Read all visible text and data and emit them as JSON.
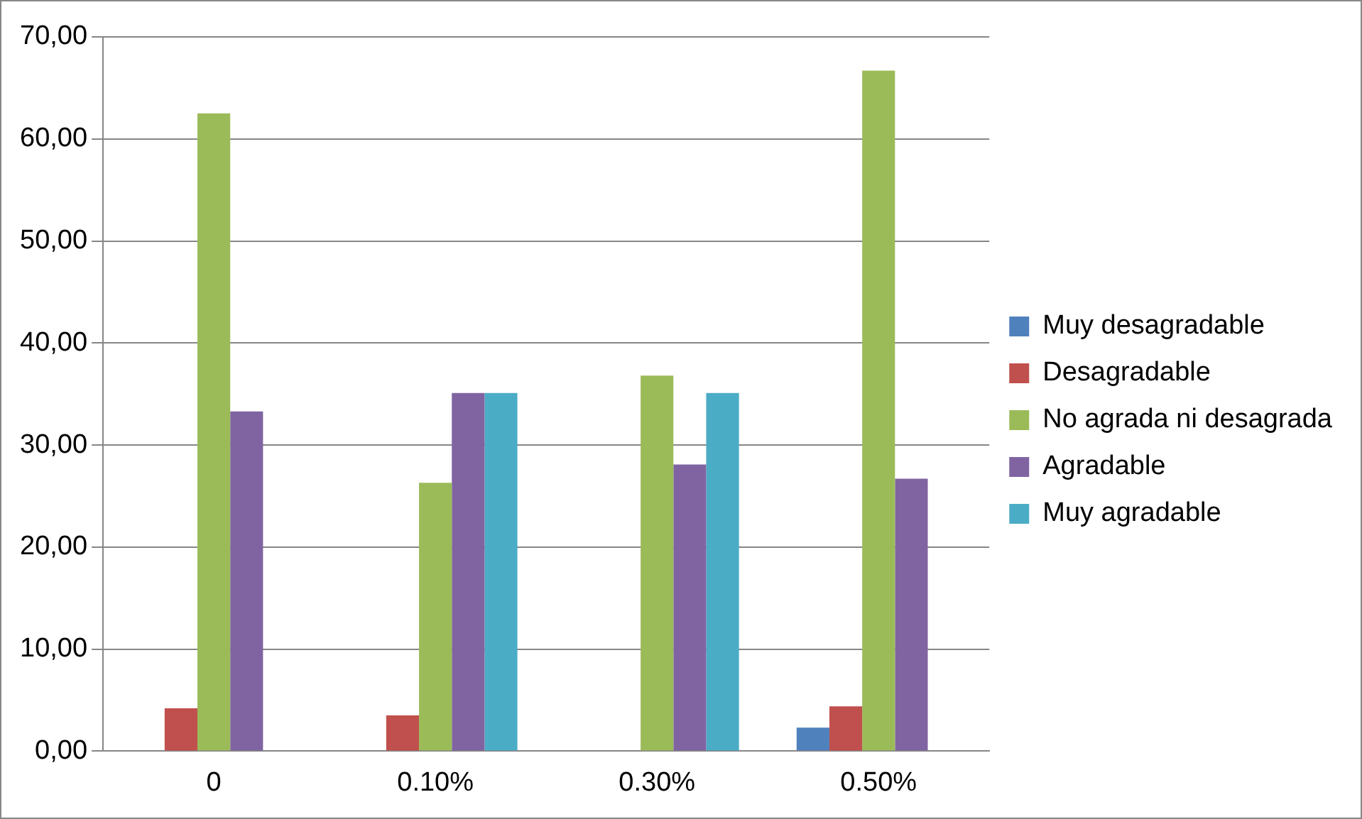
{
  "chart_data": {
    "type": "bar",
    "categories": [
      "0",
      "0.10%",
      "0.30%",
      "0.50%"
    ],
    "series": [
      {
        "name": "Muy desagradable",
        "color": "#4f81bd",
        "values": [
          0,
          0,
          0,
          2.3
        ]
      },
      {
        "name": "Desagradable",
        "color": "#c0504d",
        "values": [
          4.2,
          3.5,
          0,
          4.4
        ]
      },
      {
        "name": "No agrada ni desagrada",
        "color": "#9bbb59",
        "values": [
          62.5,
          26.3,
          36.8,
          66.7
        ]
      },
      {
        "name": "Agradable",
        "color": "#8064a2",
        "values": [
          33.3,
          35.1,
          28.1,
          26.7
        ]
      },
      {
        "name": "Muy agradable",
        "color": "#4bacc6",
        "values": [
          0,
          35.1,
          35.1,
          0
        ]
      }
    ],
    "ylim": [
      0,
      70
    ],
    "yticks": [
      {
        "value": 0,
        "label": "0,00"
      },
      {
        "value": 10,
        "label": "10,00"
      },
      {
        "value": 20,
        "label": "20,00"
      },
      {
        "value": 30,
        "label": "30,00"
      },
      {
        "value": 40,
        "label": "40,00"
      },
      {
        "value": 50,
        "label": "50,00"
      },
      {
        "value": 60,
        "label": "60,00"
      },
      {
        "value": 70,
        "label": "70,00"
      }
    ],
    "grid": "y",
    "legend": "right"
  }
}
